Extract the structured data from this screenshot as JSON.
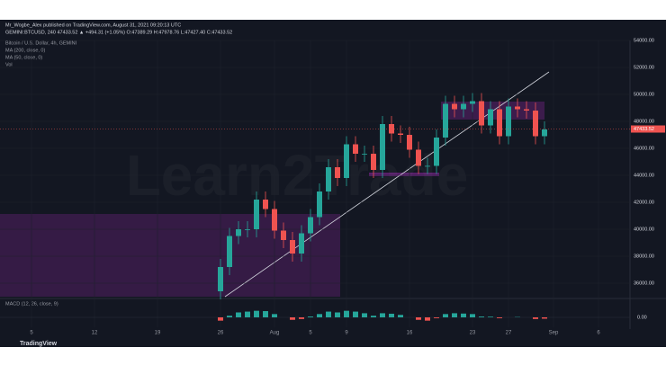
{
  "header": {
    "publisher": "Mr_Wogbe_Alex published on TradingView.com, August 31, 2021 09:20:13 UTC",
    "quote": "GEMINI:BTCUSD, 240  47433.52 ▲ +494.31 (+1.05%)  O:47389.29 H:47978.76 L:47427.40 C:47433.52"
  },
  "footer": "TradingView",
  "chart_data": {
    "type": "candlestick",
    "title": "Bitcoin / U.S. Dollar, 4h, GEMINI",
    "indicators": [
      "MA (200, close, 0)",
      "MA (50, close, 0)",
      "Vol"
    ],
    "watermark": "Learn2Trade",
    "x": [
      21,
      22,
      23,
      24,
      25,
      26,
      27,
      28,
      29,
      30,
      31,
      32,
      33,
      34,
      35,
      36,
      37,
      38,
      39,
      40,
      41,
      42,
      43,
      44,
      45,
      46,
      47,
      48,
      49,
      50,
      51,
      52,
      53,
      54,
      55,
      56,
      57
    ],
    "open": [
      35400,
      37200,
      39500,
      40000,
      40000,
      42200,
      41500,
      39900,
      39200,
      38200,
      39700,
      40900,
      42800,
      44600,
      43800,
      46300,
      45600,
      45600,
      44400,
      47800,
      47100,
      47000,
      45900,
      44700,
      44700,
      46800,
      49300,
      48900,
      49300,
      49500,
      47700,
      48900,
      46900,
      49100,
      48900,
      48800,
      46900
    ],
    "high": [
      37800,
      40100,
      40600,
      40600,
      42800,
      42800,
      42100,
      40500,
      39800,
      40300,
      41500,
      43400,
      45200,
      45200,
      46900,
      46900,
      46200,
      46200,
      48400,
      48400,
      47700,
      47600,
      46500,
      45300,
      47400,
      49900,
      49900,
      49900,
      50100,
      50100,
      49500,
      49500,
      49700,
      49700,
      49500,
      49400,
      48000
    ],
    "low": [
      34800,
      36600,
      38900,
      39400,
      39400,
      40900,
      39300,
      38600,
      37600,
      37600,
      39100,
      40300,
      42200,
      43200,
      43200,
      45000,
      45000,
      43800,
      43800,
      46500,
      46400,
      45300,
      44100,
      44100,
      44100,
      46200,
      48300,
      48300,
      48700,
      47100,
      47100,
      46300,
      46300,
      48300,
      48200,
      46300,
      46300
    ],
    "close": [
      37200,
      39500,
      40000,
      40000,
      42200,
      41500,
      39900,
      39200,
      38200,
      39700,
      40900,
      42800,
      44600,
      43800,
      46300,
      45600,
      45600,
      44400,
      47800,
      47100,
      47000,
      45900,
      44700,
      44700,
      46800,
      49300,
      48900,
      49300,
      49500,
      47700,
      48900,
      46900,
      49100,
      48900,
      48800,
      46900,
      47400
    ],
    "up_color": "#26a69a",
    "down_color": "#ef5350",
    "xlim": [
      -3.5,
      66.5
    ],
    "xticks": [
      {
        "value": 0,
        "label": "5"
      },
      {
        "value": 7,
        "label": "12"
      },
      {
        "value": 14,
        "label": "19"
      },
      {
        "value": 21,
        "label": "26"
      },
      {
        "value": 27,
        "label": "Aug"
      },
      {
        "value": 31,
        "label": "5"
      },
      {
        "value": 35,
        "label": "9"
      },
      {
        "value": 42,
        "label": "16"
      },
      {
        "value": 49,
        "label": "23"
      },
      {
        "value": 53,
        "label": "27"
      },
      {
        "value": 58,
        "label": "Sep"
      },
      {
        "value": 63,
        "label": "6"
      }
    ],
    "ylim": [
      35000,
      54000
    ],
    "yticks": [
      {
        "value": 36000,
        "label": "36000.00"
      },
      {
        "value": 38000,
        "label": "38000.00"
      },
      {
        "value": 40000,
        "label": "40000.00"
      },
      {
        "value": 42000,
        "label": "42000.00"
      },
      {
        "value": 44000,
        "label": "44000.00"
      },
      {
        "value": 46000,
        "label": "46000.00"
      },
      {
        "value": 48000,
        "label": "48000.00"
      },
      {
        "value": 50000,
        "label": "50000.00"
      },
      {
        "value": 52000,
        "label": "52000.00"
      },
      {
        "value": 54000,
        "label": "54000.00"
      }
    ],
    "last_price": {
      "value": 47433.52,
      "label": "47433.52"
    },
    "macd": {
      "title": "MACD (12, 26, close, 9)",
      "values": [
        -200,
        100,
        300,
        350,
        400,
        380,
        200,
        0,
        -150,
        -100,
        50,
        200,
        350,
        300,
        400,
        350,
        250,
        100,
        250,
        220,
        150,
        0,
        -150,
        -200,
        -50,
        200,
        250,
        230,
        200,
        50,
        40,
        -50,
        0,
        20,
        0,
        -100,
        -80
      ],
      "ylim": [
        -600,
        600
      ],
      "yticks": [
        {
          "value": 0,
          "label": "0.00"
        }
      ],
      "up_color": "#26a69a",
      "down_color": "#ef5350"
    }
  }
}
